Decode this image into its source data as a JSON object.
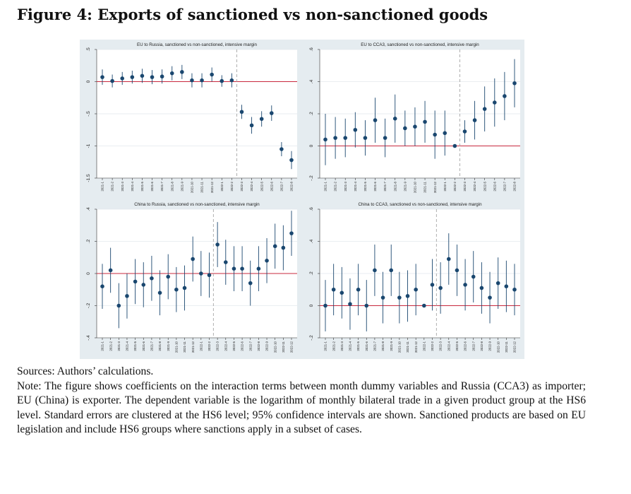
{
  "figure": {
    "title": "Figure 4: Exports of sanctioned vs non-sanctioned goods"
  },
  "caption": {
    "sources": "Sources: Authors’ calculations.",
    "note": "Note: The figure shows coefficients on the interaction terms between month dummy variables and Russia (CCA3) as importer; EU (China) is exporter. The dependent variable is the logarithm of monthly bilateral trade in a given product group at the HS6 level. Standard errors are clustered at the HS6 level; 95% confidence intervals are shown. Sanctioned products are based on EU legislation and include HS6 groups where sanctions apply in a subset of cases."
  },
  "colors": {
    "panel_bg": "#e5ecf0",
    "plot_bg": "#ffffff",
    "grid": "#e3e8ec",
    "zero_line": "#c8283e",
    "marker": "#1a476f",
    "ci": "#1a476f",
    "event_line": "#9a9a9a"
  },
  "chart_data": [
    {
      "type": "scatter",
      "title": "EU to Russia, sanctioned vs non-sanctioned, intensive margin",
      "x": [
        "2021-1",
        "2021-2",
        "2021-3",
        "2021-4",
        "2021-5",
        "2021-6",
        "2021-7",
        "2021-8",
        "2021-9",
        "2021-10",
        "2021-11",
        "2021-12",
        "2022-1",
        "2022-2",
        "2022-3",
        "2022-4",
        "2022-5",
        "2022-6",
        "2022-7",
        "2022-8"
      ],
      "y": [
        0.07,
        0.01,
        0.05,
        0.07,
        0.09,
        0.07,
        0.08,
        0.13,
        0.15,
        0.02,
        0.02,
        0.11,
        0.01,
        0.02,
        -0.47,
        -0.68,
        -0.58,
        -0.49,
        -1.05,
        -1.22
      ],
      "ci_low": [
        -0.05,
        -0.09,
        -0.05,
        -0.03,
        -0.02,
        -0.04,
        -0.03,
        0.02,
        0.04,
        -0.09,
        -0.09,
        0.0,
        -0.08,
        -0.09,
        -0.58,
        -0.81,
        -0.7,
        -0.61,
        -1.16,
        -1.36
      ],
      "ci_high": [
        0.19,
        0.11,
        0.15,
        0.17,
        0.2,
        0.18,
        0.19,
        0.24,
        0.26,
        0.13,
        0.13,
        0.22,
        0.1,
        0.13,
        -0.36,
        -0.55,
        -0.46,
        -0.37,
        -0.94,
        -1.08
      ],
      "yticks": [
        0.5,
        0,
        -0.5,
        -1,
        -1.5
      ],
      "ytick_labels": [
        ".5",
        "0",
        "-.5",
        "-1",
        "-1.5"
      ],
      "ylim": [
        -1.5,
        0.5
      ],
      "event_after_index": 13,
      "zero_line": 0,
      "grid": true
    },
    {
      "type": "scatter",
      "title": "EU to CCA3, sanctioned vs non-sanctioned, intensive margin",
      "x": [
        "2021-1",
        "2021-2",
        "2021-3",
        "2021-4",
        "2021-5",
        "2021-6",
        "2021-7",
        "2021-8",
        "2021-9",
        "2021-10",
        "2021-11",
        "2021-12",
        "2022-1",
        "2022-2",
        "2022-3",
        "2022-4",
        "2022-5",
        "2022-6",
        "2022-7",
        "2022-8"
      ],
      "y": [
        0.04,
        0.05,
        0.05,
        0.1,
        0.05,
        0.16,
        0.05,
        0.17,
        0.11,
        0.12,
        0.15,
        0.07,
        0.08,
        0.0,
        0.09,
        0.16,
        0.23,
        0.27,
        0.31,
        0.39
      ],
      "ci_low": [
        -0.12,
        -0.08,
        -0.07,
        -0.01,
        -0.06,
        0.02,
        -0.07,
        0.02,
        0.0,
        0.0,
        0.02,
        -0.08,
        -0.06,
        -0.01,
        0.02,
        0.04,
        0.09,
        0.12,
        0.16,
        0.24
      ],
      "ci_high": [
        0.2,
        0.18,
        0.17,
        0.21,
        0.16,
        0.3,
        0.17,
        0.32,
        0.22,
        0.24,
        0.28,
        0.22,
        0.22,
        0.01,
        0.16,
        0.28,
        0.37,
        0.42,
        0.46,
        0.54
      ],
      "yticks": [
        0.6,
        0.4,
        0.2,
        0,
        -0.2
      ],
      "ytick_labels": [
        ".6",
        ".4",
        ".2",
        "0",
        "-.2"
      ],
      "ylim": [
        -0.2,
        0.6
      ],
      "event_after_index": 13,
      "zero_line": 0,
      "grid": true
    },
    {
      "type": "scatter",
      "title": "China to Russia, sanctioned vs non-sanctioned, intensive margin",
      "x": [
        "2021-1",
        "2021-2",
        "2021-3",
        "2021-4",
        "2021-5",
        "2021-6",
        "2021-7",
        "2021-8",
        "2021-9",
        "2021-10",
        "2021-11",
        "2021-12",
        "2022-1",
        "2022-2",
        "2022-3",
        "2022-4",
        "2022-5",
        "2022-6",
        "2022-7",
        "2022-8",
        "2022-9",
        "2022-10",
        "2022-11",
        "2022-12"
      ],
      "y": [
        -0.08,
        0.02,
        -0.2,
        -0.14,
        -0.05,
        -0.07,
        -0.03,
        -0.12,
        -0.02,
        -0.1,
        -0.09,
        0.09,
        0.0,
        -0.01,
        0.18,
        0.07,
        0.03,
        0.03,
        -0.06,
        0.03,
        0.08,
        0.17,
        0.16,
        0.25
      ],
      "ci_low": [
        -0.22,
        -0.12,
        -0.34,
        -0.28,
        -0.19,
        -0.21,
        -0.17,
        -0.26,
        -0.16,
        -0.24,
        -0.23,
        -0.05,
        -0.14,
        -0.15,
        0.04,
        -0.07,
        -0.11,
        -0.11,
        -0.2,
        -0.11,
        -0.06,
        0.03,
        0.02,
        0.11
      ],
      "ci_high": [
        0.06,
        0.16,
        -0.06,
        0.0,
        0.09,
        0.07,
        0.11,
        0.02,
        0.12,
        0.04,
        0.05,
        0.23,
        0.14,
        0.13,
        0.32,
        0.21,
        0.17,
        0.17,
        0.08,
        0.17,
        0.22,
        0.31,
        0.3,
        0.39
      ],
      "yticks": [
        0.4,
        0.2,
        0,
        -0.2,
        -0.4
      ],
      "ytick_labels": [
        ".4",
        ".2",
        "0",
        "-.2",
        "-.4"
      ],
      "ylim": [
        -0.4,
        0.4
      ],
      "event_after_index": 13,
      "zero_line": 0,
      "grid": true
    },
    {
      "type": "scatter",
      "title": "China to CCA3, sanctioned vs non-sanctioned, intensive margin",
      "x": [
        "2021-1",
        "2021-2",
        "2021-3",
        "2021-4",
        "2021-5",
        "2021-6",
        "2021-7",
        "2021-8",
        "2021-9",
        "2021-10",
        "2021-11",
        "2021-12",
        "2022-1",
        "2022-2",
        "2022-3",
        "2022-4",
        "2022-5",
        "2022-6",
        "2022-7",
        "2022-8",
        "2022-9",
        "2022-10",
        "2022-11",
        "2022-12"
      ],
      "y": [
        0.0,
        0.1,
        0.08,
        0.01,
        0.1,
        0.0,
        0.22,
        0.05,
        0.22,
        0.05,
        0.06,
        0.1,
        0.0,
        0.13,
        0.11,
        0.29,
        0.22,
        0.13,
        0.18,
        0.11,
        0.05,
        0.14,
        0.12,
        0.1
      ],
      "ci_low": [
        -0.16,
        -0.06,
        -0.08,
        -0.15,
        -0.06,
        -0.16,
        0.06,
        -0.11,
        0.06,
        -0.11,
        -0.1,
        -0.06,
        -0.01,
        -0.03,
        -0.05,
        0.13,
        0.06,
        -0.03,
        0.02,
        -0.05,
        -0.11,
        -0.02,
        -0.04,
        -0.06
      ],
      "ci_high": [
        0.16,
        0.26,
        0.24,
        0.17,
        0.26,
        0.16,
        0.38,
        0.21,
        0.38,
        0.21,
        0.22,
        0.26,
        0.01,
        0.29,
        0.27,
        0.45,
        0.38,
        0.29,
        0.34,
        0.27,
        0.21,
        0.3,
        0.28,
        0.26
      ],
      "yticks": [
        0.6,
        0.4,
        0.2,
        0,
        -0.2
      ],
      "ytick_labels": [
        ".6",
        ".4",
        ".2",
        "0",
        "-.2"
      ],
      "ylim": [
        -0.2,
        0.6
      ],
      "event_after_index": 13,
      "zero_line": 0,
      "grid": true
    }
  ]
}
